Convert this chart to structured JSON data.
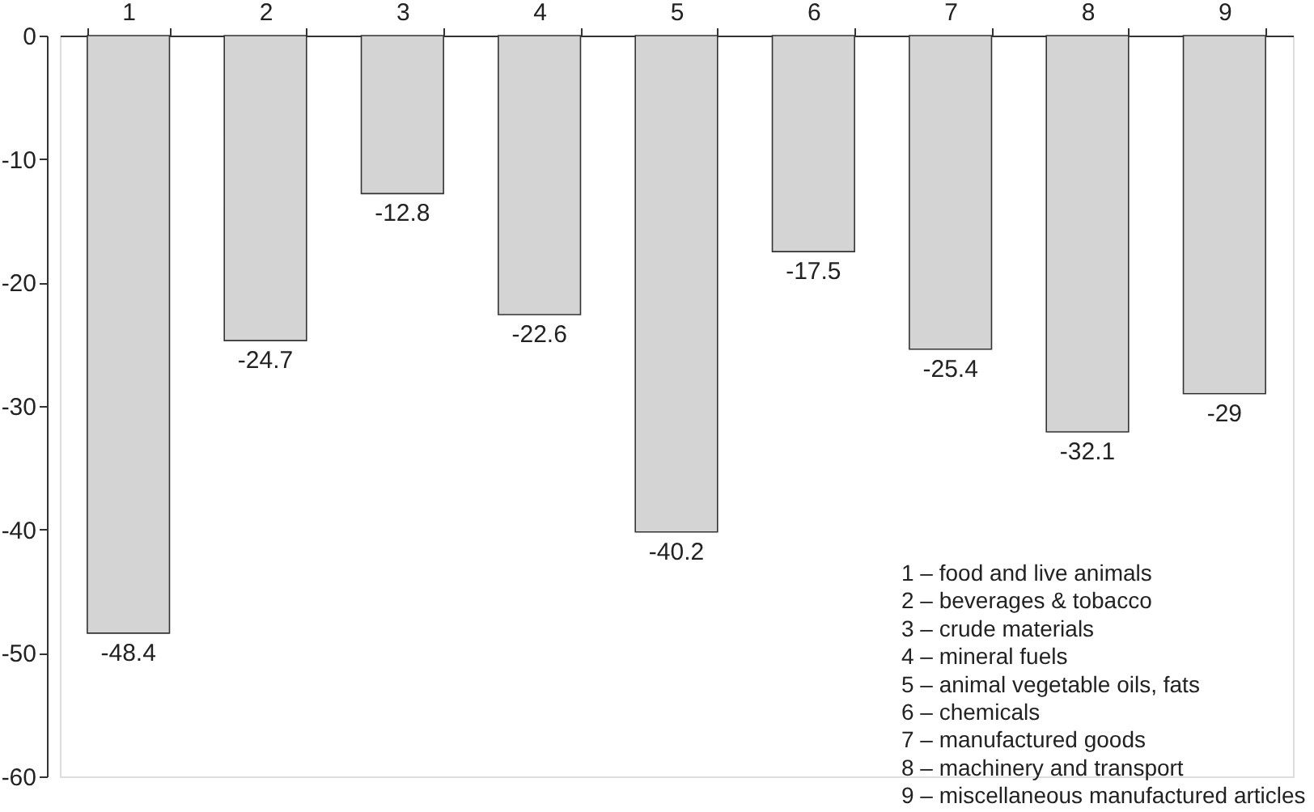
{
  "chart_data": {
    "type": "bar",
    "categories": [
      "1",
      "2",
      "3",
      "4",
      "5",
      "6",
      "7",
      "8",
      "9"
    ],
    "values": [
      -48.4,
      -24.7,
      -12.8,
      -22.6,
      -40.2,
      -17.5,
      -25.4,
      -32.1,
      -29
    ],
    "color": "#d4d4d4",
    "ylim": [
      -60,
      0
    ],
    "yticks": [
      -60,
      -50,
      -40,
      -30,
      -20,
      -10,
      0
    ],
    "grid": false,
    "data_labels": true,
    "annotations": [
      "1 – food and live animals",
      "2 – beverages & tobacco",
      "3 – crude materials",
      "4 – mineral fuels",
      "5 – animal vegetable oils, fats",
      "6 – chemicals",
      "7 – manufactured goods",
      "8 – machinery and transport",
      "9 – miscellaneous manufactured articles"
    ]
  }
}
